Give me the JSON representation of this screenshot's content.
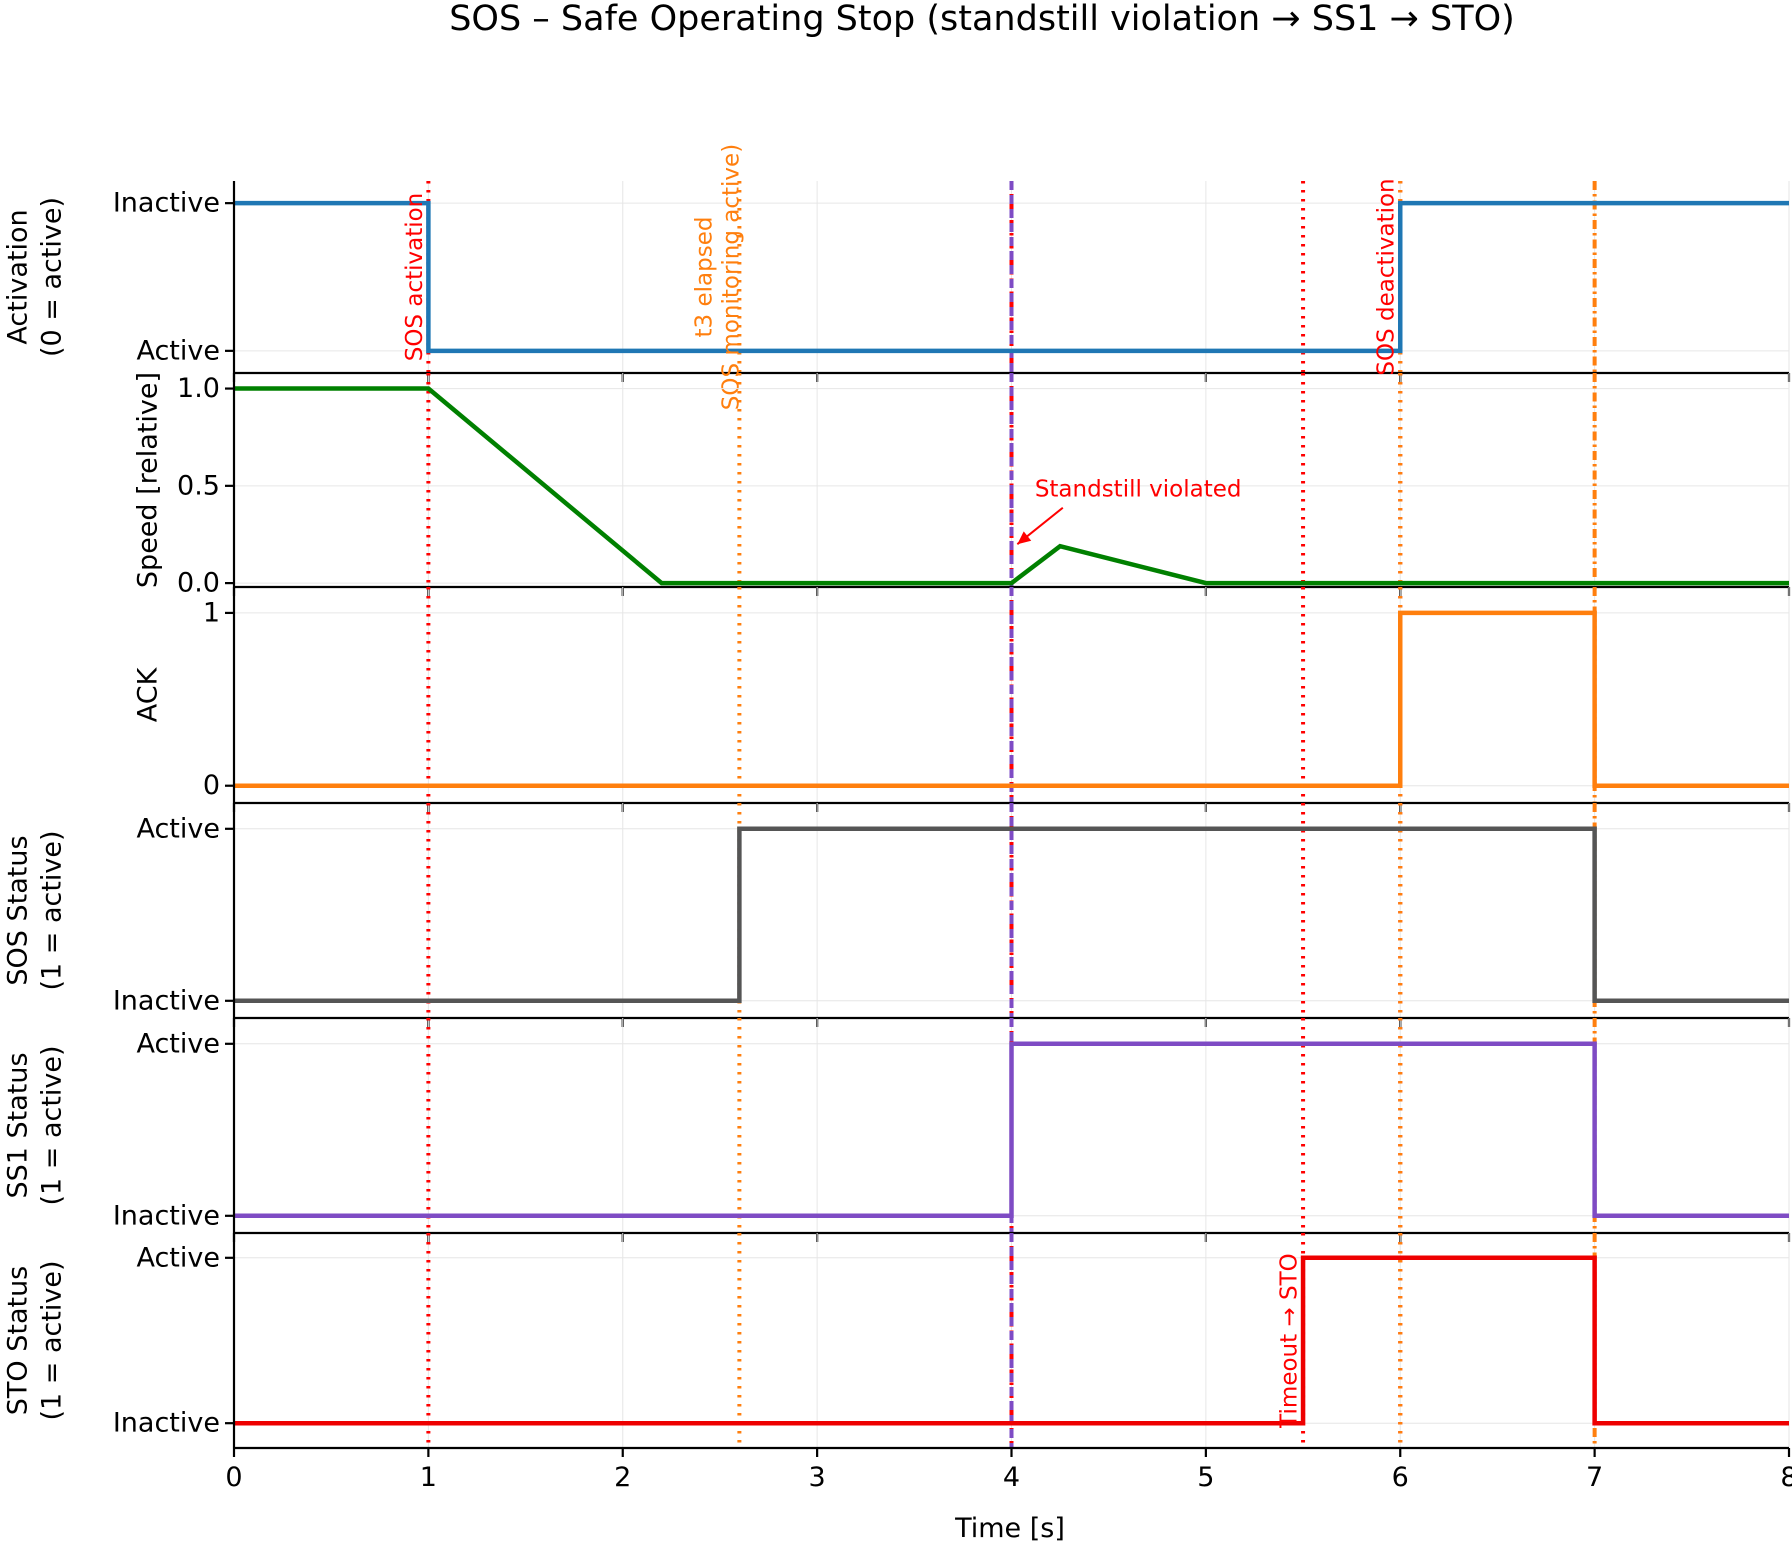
{
  "chart_data": {
    "type": "line",
    "title": "SOS – Safe Operating Stop (standstill violation → SS1 → STO)",
    "xlabel": "Time [s]",
    "xlim": [
      0,
      8
    ],
    "xticks": [
      0,
      1,
      2,
      3,
      4,
      5,
      6,
      7,
      8
    ],
    "event_lines": [
      {
        "x": 1.0,
        "color": "#ff0000",
        "style": "dotted"
      },
      {
        "x": 2.6,
        "color": "#ff7f0e",
        "style": "dotted"
      },
      {
        "x": 4.0,
        "color": "#ff0000",
        "style": "dashdot"
      },
      {
        "x": 4.0,
        "color": "#7e4bc4",
        "style": "dashed"
      },
      {
        "x": 5.5,
        "color": "#ff0000",
        "style": "dotted"
      },
      {
        "x": 6.0,
        "color": "#ff0000",
        "style": "dotted"
      },
      {
        "x": 6.0,
        "color": "#ff7f0e",
        "style": "dotted"
      },
      {
        "x": 7.0,
        "color": "#ff7f0e",
        "style": "dashdot"
      }
    ],
    "panels": [
      {
        "name": "activation",
        "ylabel": [
          "Activation",
          "(0 = active)"
        ],
        "ylim": [
          -0.15,
          1.15
        ],
        "yticks": [
          {
            "v": 1,
            "label": "Inactive"
          },
          {
            "v": 0,
            "label": "Active"
          }
        ],
        "color": "#1f77b4",
        "x": [
          0,
          1,
          1,
          6,
          6,
          8
        ],
        "y": [
          1,
          1,
          0,
          0,
          1,
          1
        ],
        "annotations": [
          {
            "text": "SOS activation",
            "x": 0.93,
            "y": 0.5,
            "rotate": true,
            "color": "#ff0000"
          },
          {
            "text": "t3 elapsed",
            "x": 2.42,
            "y": 0.5,
            "rotate": true,
            "color": "#ff7f0e"
          },
          {
            "text": "SOS monitoring active)",
            "x": 2.56,
            "y": 0.5,
            "rotate": true,
            "color": "#ff7f0e"
          },
          {
            "text": "SOS deactivation",
            "x": 5.93,
            "y": 0.5,
            "rotate": true,
            "color": "#ff0000"
          }
        ]
      },
      {
        "name": "speed",
        "ylabel": [
          "Speed [relative]"
        ],
        "ylim": [
          -0.02,
          1.08
        ],
        "yticks": [
          {
            "v": 1.0,
            "label": "1.0"
          },
          {
            "v": 0.5,
            "label": "0.5"
          },
          {
            "v": 0.0,
            "label": "0.0"
          }
        ],
        "color": "#008000",
        "x": [
          0,
          1,
          2.2,
          4.0,
          4.25,
          5.0,
          8.0
        ],
        "y": [
          1.0,
          1.0,
          0.0,
          0.0,
          0.19,
          0.0,
          0.0
        ],
        "annotations": [
          {
            "text": "Standstill violated",
            "x": 4.12,
            "y": 0.48,
            "rotate": false,
            "color": "#ff0000",
            "arrow_to": [
              4.03,
              0.2
            ]
          }
        ]
      },
      {
        "name": "ack",
        "ylabel": [
          "ACK"
        ],
        "ylim": [
          -0.1,
          1.15
        ],
        "yticks": [
          {
            "v": 1,
            "label": "1"
          },
          {
            "v": 0,
            "label": "0"
          }
        ],
        "color": "#ff7f0e",
        "x": [
          0,
          6,
          6,
          7,
          7,
          8
        ],
        "y": [
          0,
          0,
          1,
          1,
          0,
          0
        ],
        "annotations": []
      },
      {
        "name": "sos-status",
        "ylabel": [
          "SOS Status",
          "(1 = active)"
        ],
        "ylim": [
          -0.1,
          1.15
        ],
        "yticks": [
          {
            "v": 1,
            "label": "Active"
          },
          {
            "v": 0,
            "label": "Inactive"
          }
        ],
        "color": "#555555",
        "x": [
          0,
          2.6,
          2.6,
          7,
          7,
          8
        ],
        "y": [
          0,
          0,
          1,
          1,
          0,
          0
        ],
        "annotations": []
      },
      {
        "name": "ss1-status",
        "ylabel": [
          "SS1 Status",
          "(1 = active)"
        ],
        "ylim": [
          -0.1,
          1.15
        ],
        "yticks": [
          {
            "v": 1,
            "label": "Active"
          },
          {
            "v": 0,
            "label": "Inactive"
          }
        ],
        "color": "#7e4bc4",
        "x": [
          0,
          4,
          4,
          7,
          7,
          8
        ],
        "y": [
          0,
          0,
          1,
          1,
          0,
          0
        ],
        "annotations": []
      },
      {
        "name": "sto-status",
        "ylabel": [
          "STO Status",
          "(1 = active)"
        ],
        "ylim": [
          -0.15,
          1.15
        ],
        "yticks": [
          {
            "v": 1,
            "label": "Active"
          },
          {
            "v": 0,
            "label": "Inactive"
          }
        ],
        "color": "#ee0000",
        "x": [
          0,
          5.5,
          5.5,
          7,
          7,
          8
        ],
        "y": [
          0,
          0,
          1,
          1,
          0,
          0
        ],
        "annotations": [
          {
            "text": "Timeout → STO",
            "x": 5.43,
            "y": 0.5,
            "rotate": true,
            "color": "#ff0000"
          }
        ]
      }
    ]
  }
}
